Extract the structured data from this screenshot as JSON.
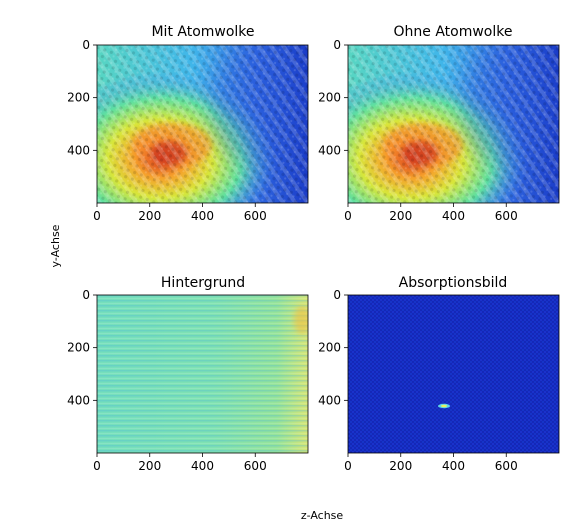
{
  "figure": {
    "shared_xlabel": "z-Achse",
    "shared_ylabel": "y-Achse"
  },
  "chart_data": [
    {
      "type": "heatmap",
      "title": "Mit Atomwolke",
      "colormap": "jet",
      "xlim": [
        0,
        800
      ],
      "ylim": [
        600,
        0
      ],
      "x_ticks": [
        0,
        200,
        400,
        600
      ],
      "y_ticks": [
        0,
        200,
        400
      ],
      "pattern": "speckled interference fringes; broad bright (yellow-red) region centered near z=250, y=420, fading to blue on the right (z>550)"
    },
    {
      "type": "heatmap",
      "title": "Ohne Atomwolke",
      "colormap": "jet",
      "xlim": [
        0,
        800
      ],
      "ylim": [
        600,
        0
      ],
      "x_ticks": [
        0,
        200,
        400,
        600
      ],
      "y_ticks": [
        0,
        200,
        400
      ],
      "pattern": "nearly identical to 'Mit Atomwolke': bright region near z=250, y=420, blue on the right"
    },
    {
      "type": "heatmap",
      "title": "Hintergrund",
      "colormap": "jet",
      "xlim": [
        0,
        800
      ],
      "ylim": [
        600,
        0
      ],
      "x_ticks": [
        0,
        200,
        400,
        600
      ],
      "y_ticks": [
        0,
        200,
        400
      ],
      "pattern": "nearly uniform cyan-green with horizontal streaks, slightly yellow at right edge near z=780, y=100"
    },
    {
      "type": "heatmap",
      "title": "Absorptionsbild",
      "colormap": "jet",
      "xlim": [
        0,
        800
      ],
      "ylim": [
        600,
        0
      ],
      "x_ticks": [
        0,
        200,
        400,
        600
      ],
      "y_ticks": [
        0,
        200,
        400
      ],
      "pattern": "uniform dark blue background with a single small bright spot at z=365, y=420"
    }
  ]
}
